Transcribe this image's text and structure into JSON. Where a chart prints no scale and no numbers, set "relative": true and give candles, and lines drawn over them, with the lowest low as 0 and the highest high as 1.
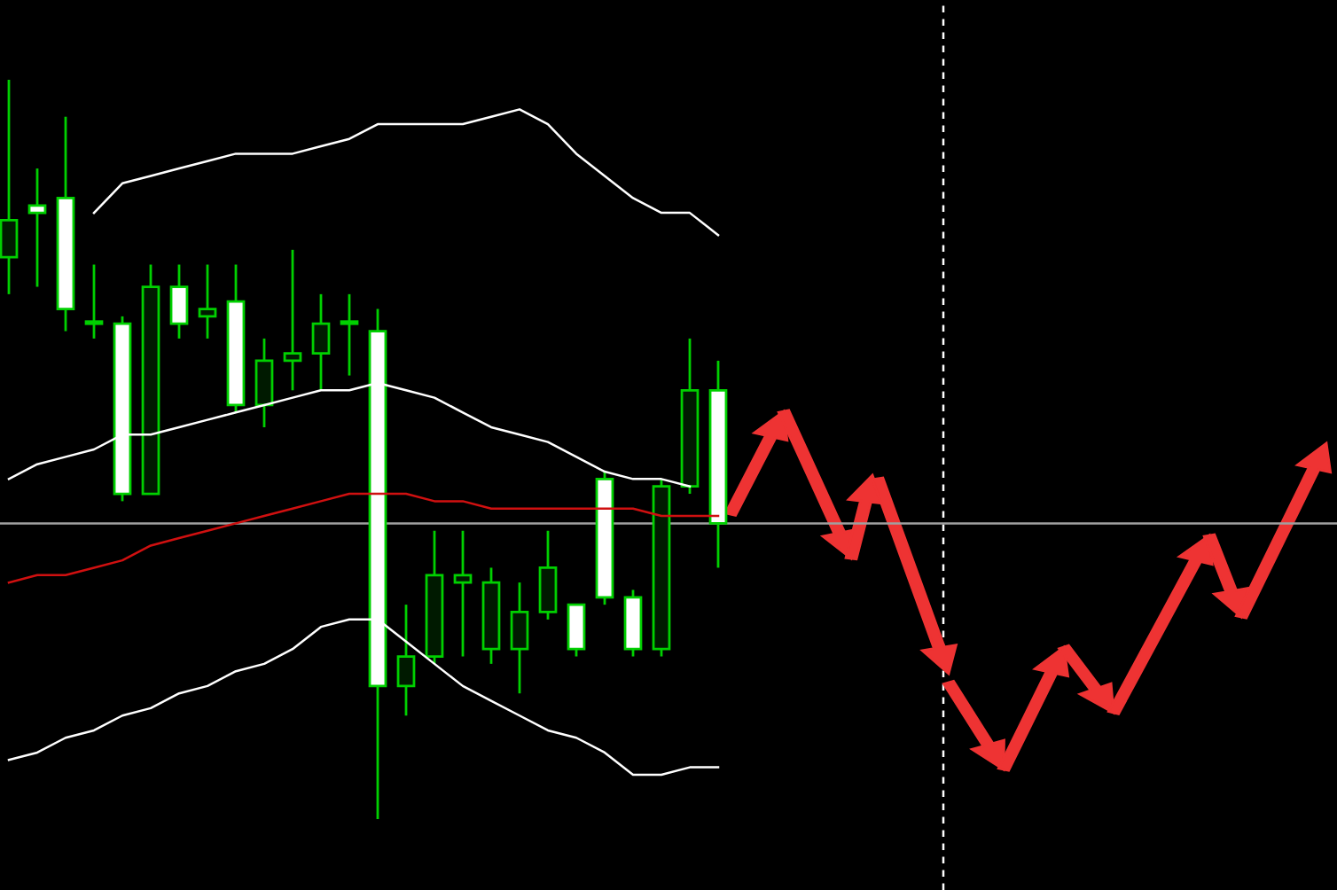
{
  "chart_data": {
    "type": "candlestick",
    "relative": true,
    "categories": [
      null,
      null,
      null,
      null,
      null,
      null,
      null,
      null,
      null,
      null,
      null,
      null,
      null,
      null,
      null,
      null,
      null,
      null,
      null,
      null,
      null,
      null,
      null,
      null,
      null,
      null
    ],
    "ohlc": [
      [
        0.76,
        1.0,
        0.71,
        0.81
      ],
      [
        0.83,
        0.88,
        0.72,
        0.82
      ],
      [
        0.84,
        0.95,
        0.66,
        0.69
      ],
      [
        0.67,
        0.75,
        0.65,
        0.67
      ],
      [
        0.67,
        0.68,
        0.43,
        0.44
      ],
      [
        0.44,
        0.75,
        0.44,
        0.72
      ],
      [
        0.72,
        0.75,
        0.65,
        0.67
      ],
      [
        0.68,
        0.75,
        0.65,
        0.69
      ],
      [
        0.7,
        0.75,
        0.55,
        0.56
      ],
      [
        0.56,
        0.65,
        0.53,
        0.62
      ],
      [
        0.62,
        0.77,
        0.58,
        0.63
      ],
      [
        0.63,
        0.71,
        0.58,
        0.67
      ],
      [
        0.67,
        0.71,
        0.6,
        0.67
      ],
      [
        0.66,
        0.69,
        0.0,
        0.18
      ],
      [
        0.18,
        0.29,
        0.14,
        0.22
      ],
      [
        0.22,
        0.39,
        0.21,
        0.33
      ],
      [
        0.32,
        0.39,
        0.22,
        0.33
      ],
      [
        0.23,
        0.34,
        0.21,
        0.32
      ],
      [
        0.23,
        0.32,
        0.17,
        0.28
      ],
      [
        0.28,
        0.39,
        0.27,
        0.34
      ],
      [
        0.29,
        0.29,
        0.22,
        0.23
      ],
      [
        0.46,
        0.47,
        0.29,
        0.3
      ],
      [
        0.3,
        0.31,
        0.22,
        0.23
      ],
      [
        0.23,
        0.46,
        0.22,
        0.45
      ],
      [
        0.45,
        0.65,
        0.44,
        0.58
      ],
      [
        0.58,
        0.62,
        0.34,
        0.4
      ]
    ],
    "series": [
      {
        "type": "line",
        "color": "#ffffff",
        "values": [
          null,
          null,
          null,
          0.82,
          0.86,
          0.87,
          0.88,
          0.89,
          0.9,
          0.9,
          0.9,
          0.91,
          0.92,
          0.94,
          0.94,
          0.94,
          0.94,
          0.95,
          0.96,
          0.94,
          0.9,
          0.87,
          0.84,
          0.82,
          0.82,
          0.79
        ]
      },
      {
        "type": "line",
        "color": "#ffffff",
        "values": [
          0.46,
          0.48,
          0.49,
          0.5,
          0.52,
          0.52,
          0.53,
          0.54,
          0.55,
          0.56,
          0.57,
          0.58,
          0.58,
          0.59,
          0.58,
          0.57,
          0.55,
          0.53,
          0.52,
          0.51,
          0.49,
          0.47,
          0.46,
          0.46,
          0.45,
          null
        ]
      },
      {
        "type": "line",
        "color": "#d01010",
        "values": [
          0.32,
          0.33,
          0.33,
          0.34,
          0.35,
          0.37,
          0.38,
          0.39,
          0.4,
          0.41,
          0.42,
          0.43,
          0.44,
          0.44,
          0.44,
          0.43,
          0.43,
          0.42,
          0.42,
          0.42,
          0.42,
          0.42,
          0.42,
          0.41,
          0.41,
          0.41
        ]
      },
      {
        "type": "line",
        "color": "#ffffff",
        "values": [
          0.08,
          0.09,
          0.11,
          0.12,
          0.14,
          0.15,
          0.17,
          0.18,
          0.2,
          0.21,
          0.23,
          0.26,
          0.27,
          0.27,
          0.24,
          0.21,
          0.18,
          0.16,
          0.14,
          0.12,
          0.11,
          0.09,
          0.06,
          0.06,
          0.07,
          0.07
        ]
      }
    ],
    "ref_lines": [
      {
        "axis": "y",
        "value": 0.4,
        "color": "#a0a0a0",
        "line_style": "solid"
      }
    ]
  }
}
